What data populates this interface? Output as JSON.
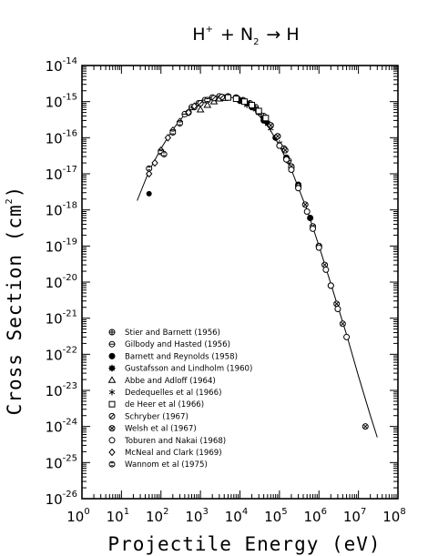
{
  "chart_data": {
    "type": "scatter",
    "title": {
      "parts": [
        {
          "text": "H",
          "sup": "+"
        },
        {
          "text": " + N",
          "sub": "2"
        },
        {
          "text": " → H"
        }
      ]
    },
    "xlabel": "Projectile Energy (eV)",
    "ylabel": {
      "text": "Cross Section (cm",
      "sup": "2",
      "tail": ")"
    },
    "x_scale": "log",
    "y_scale": "log",
    "xlim": [
      1,
      100000000
    ],
    "ylim": [
      1e-26,
      1e-14
    ],
    "x_ticks": [
      {
        "base": "10",
        "exp": "0",
        "value": 1
      },
      {
        "base": "10",
        "exp": "1",
        "value": 10
      },
      {
        "base": "10",
        "exp": "2",
        "value": 100
      },
      {
        "base": "10",
        "exp": "3",
        "value": 1000
      },
      {
        "base": "10",
        "exp": "4",
        "value": 10000
      },
      {
        "base": "10",
        "exp": "5",
        "value": 100000
      },
      {
        "base": "10",
        "exp": "6",
        "value": 1000000
      },
      {
        "base": "10",
        "exp": "7",
        "value": 10000000
      },
      {
        "base": "10",
        "exp": "8",
        "value": 100000000
      }
    ],
    "y_ticks": [
      {
        "base": "10",
        "exp": "-14",
        "value": 1e-14
      },
      {
        "base": "10",
        "exp": "-15",
        "value": 1e-15
      },
      {
        "base": "10",
        "exp": "-16",
        "value": 1e-16
      },
      {
        "base": "10",
        "exp": "-17",
        "value": 1e-17
      },
      {
        "base": "10",
        "exp": "-18",
        "value": 1e-18
      },
      {
        "base": "10",
        "exp": "-19",
        "value": 1e-19
      },
      {
        "base": "10",
        "exp": "-20",
        "value": 1e-20
      },
      {
        "base": "10",
        "exp": "-21",
        "value": 1e-21
      },
      {
        "base": "10",
        "exp": "-22",
        "value": 1e-22
      },
      {
        "base": "10",
        "exp": "-23",
        "value": 1e-23
      },
      {
        "base": "10",
        "exp": "-24",
        "value": 1e-24
      },
      {
        "base": "10",
        "exp": "-25",
        "value": 1e-25
      },
      {
        "base": "10",
        "exp": "-26",
        "value": 1e-26
      }
    ],
    "legend_position": "lower-left",
    "fit_curve": [
      [
        25,
        1.8e-18
      ],
      [
        50,
        1.2e-17
      ],
      [
        100,
        5e-17
      ],
      [
        200,
        1.7e-16
      ],
      [
        500,
        6e-16
      ],
      [
        1000,
        1.05e-15
      ],
      [
        2000,
        1.3e-15
      ],
      [
        3000,
        1.4e-15
      ],
      [
        5000,
        1.4e-15
      ],
      [
        10000,
        1.1e-15
      ],
      [
        20000,
        7e-16
      ],
      [
        50000,
        2.2e-16
      ],
      [
        100000,
        6e-17
      ],
      [
        200000,
        1.3e-17
      ],
      [
        500000,
        1e-18
      ],
      [
        1000000,
        1e-19
      ],
      [
        2000000,
        9e-21
      ],
      [
        5000000,
        3.5e-22
      ],
      [
        10000000,
        2.5e-23
      ],
      [
        20000000,
        2e-24
      ],
      [
        30000000,
        5e-25
      ]
    ],
    "series": [
      {
        "name": "Stier and Barnett (1956)",
        "marker": "circle-plus",
        "points": [
          [
            3000,
            1.3e-15
          ],
          [
            5000,
            1.4e-15
          ],
          [
            8000,
            1.3e-15
          ],
          [
            12000,
            1.1e-15
          ],
          [
            18000,
            9e-16
          ],
          [
            25000,
            7e-16
          ],
          [
            40000,
            4e-16
          ],
          [
            60000,
            2.2e-16
          ],
          [
            90000,
            1.1e-16
          ],
          [
            130000,
            5e-17
          ],
          [
            170000,
            2.3e-17
          ],
          [
            200000,
            1.5e-17
          ]
        ]
      },
      {
        "name": "Gilbody and Hasted (1956)",
        "marker": "circle-dash",
        "points": [
          [
            400,
            4.5e-16
          ],
          [
            600,
            7e-16
          ],
          [
            900,
            9e-16
          ],
          [
            1300,
            1.1e-15
          ],
          [
            2000,
            1.3e-15
          ],
          [
            3000,
            1.4e-15
          ]
        ]
      },
      {
        "name": "Barnett and Reynolds (1958)",
        "marker": "filled-circle",
        "points": [
          [
            10000,
            1.05e-15
          ],
          [
            20000,
            7e-16
          ],
          [
            40000,
            3e-16
          ],
          [
            80000,
            1e-16
          ],
          [
            150000,
            2.8e-17
          ],
          [
            300000,
            5e-18
          ],
          [
            600000,
            6e-19
          ],
          [
            1000000,
            1e-19
          ]
        ]
      },
      {
        "name": "Gustafsson and Lindholm (1960)",
        "marker": "star",
        "points": [
          [
            10000,
            1.1e-15
          ],
          [
            15000,
            9e-16
          ],
          [
            20000,
            7.5e-16
          ],
          [
            30000,
            5e-16
          ],
          [
            40000,
            3.5e-16
          ],
          [
            50000,
            2.5e-16
          ]
        ]
      },
      {
        "name": "Abbe and Adloff (1964)",
        "marker": "triangle",
        "points": [
          [
            1000,
            6e-16
          ],
          [
            1500,
            8e-16
          ],
          [
            2200,
            1e-15
          ],
          [
            3000,
            1.2e-15
          ],
          [
            4000,
            1.25e-15
          ]
        ]
      },
      {
        "name": "Dedequelles et al (1966)",
        "marker": "asterisk",
        "points": [
          [
            15000,
            8e-16
          ],
          [
            25000,
            6e-16
          ],
          [
            40000,
            3.5e-16
          ],
          [
            60000,
            1.8e-16
          ],
          [
            100000,
            7e-17
          ],
          [
            150000,
            2.5e-17
          ]
        ]
      },
      {
        "name": "de Heer et al (1966)",
        "marker": "square",
        "points": [
          [
            5000,
            1.3e-15
          ],
          [
            8000,
            1.2e-15
          ],
          [
            13000,
            1e-15
          ],
          [
            20000,
            8e-16
          ],
          [
            30000,
            5.5e-16
          ],
          [
            45000,
            3.5e-16
          ]
        ]
      },
      {
        "name": "Schryber (1967)",
        "marker": "circle-slash",
        "points": [
          [
            500,
            5e-16
          ],
          [
            700,
            7e-16
          ],
          [
            1000,
            9e-16
          ],
          [
            1500,
            1.1e-15
          ],
          [
            2200,
            1.25e-15
          ],
          [
            3500,
            1.35e-15
          ]
        ]
      },
      {
        "name": "Welsh et al (1967)",
        "marker": "circle-x",
        "points": [
          [
            60000,
            2.2e-16
          ],
          [
            90000,
            1.1e-16
          ],
          [
            140000,
            4.5e-17
          ],
          [
            200000,
            1.6e-17
          ],
          [
            300000,
            4.5e-18
          ],
          [
            450000,
            1.4e-18
          ],
          [
            700000,
            3.5e-19
          ],
          [
            1000000,
            1e-19
          ],
          [
            1400000,
            3e-20
          ],
          [
            2000000,
            8e-21
          ],
          [
            2800000,
            2.5e-21
          ],
          [
            4000000,
            7e-22
          ],
          [
            15000000,
            1e-24
          ]
        ]
      },
      {
        "name": "Toburen and Nakai (1968)",
        "marker": "open-circle",
        "points": [
          [
            100000,
            6e-17
          ],
          [
            150000,
            2.5e-17
          ],
          [
            200000,
            1.3e-17
          ],
          [
            300000,
            4e-18
          ],
          [
            500000,
            9e-19
          ],
          [
            700000,
            3e-19
          ],
          [
            1000000,
            9e-20
          ],
          [
            1500000,
            2.2e-20
          ],
          [
            2000000,
            8e-21
          ],
          [
            3000000,
            1.8e-21
          ],
          [
            5000000,
            3e-22
          ]
        ]
      },
      {
        "name": "McNeal and Clark (1969)",
        "marker": "diamond",
        "points": [
          [
            50,
            1e-17
          ],
          [
            70,
            2e-17
          ],
          [
            100,
            4.5e-17
          ],
          [
            150,
            1e-16
          ],
          [
            200,
            1.6e-16
          ],
          [
            300,
            2.8e-16
          ],
          [
            500,
            5e-16
          ],
          [
            700,
            7.5e-16
          ]
        ]
      },
      {
        "name": "Wannom et al (1975)",
        "marker": "circle-bar",
        "points": [
          [
            50,
            1.4e-17
          ],
          [
            100,
            4e-17
          ],
          [
            120,
            3.5e-17
          ],
          [
            200,
            1.4e-16
          ],
          [
            300,
            2.5e-16
          ],
          [
            1500,
            1.1e-15
          ]
        ]
      },
      {
        "name": "",
        "marker": "filled-circle-small",
        "points": [
          [
            50,
            2.8e-18
          ]
        ]
      }
    ]
  }
}
